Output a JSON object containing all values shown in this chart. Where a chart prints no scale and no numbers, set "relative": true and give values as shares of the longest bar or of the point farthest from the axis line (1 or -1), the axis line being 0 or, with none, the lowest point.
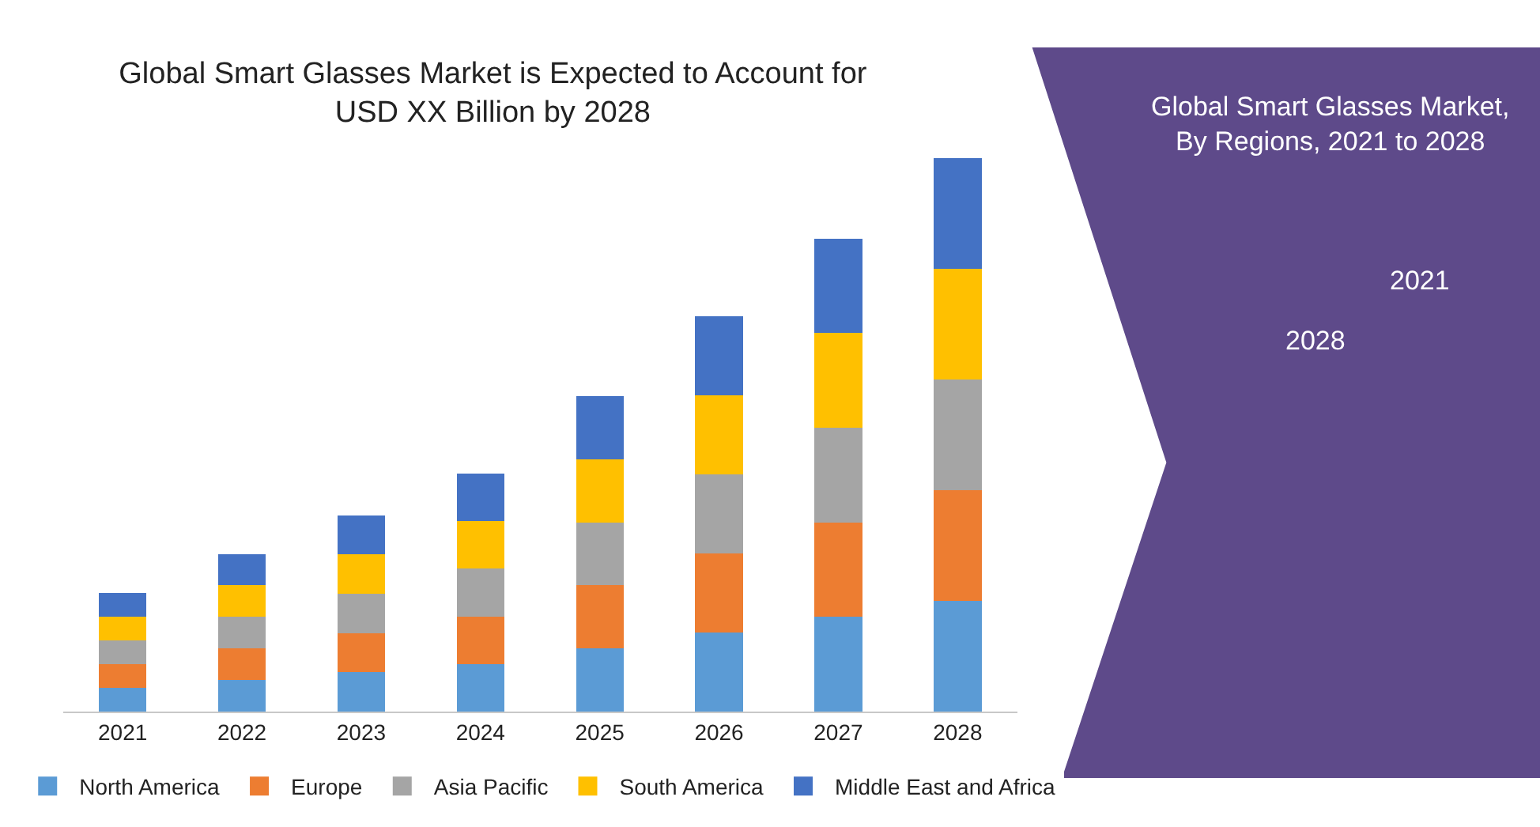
{
  "chart_data": {
    "type": "bar",
    "title": "Global Smart Glasses Market is Expected to Account for\nUSD XX Billion by 2028",
    "stacked": true,
    "relative": true,
    "legend": "bottom",
    "categories": [
      "2021",
      "2022",
      "2023",
      "2024",
      "2025",
      "2026",
      "2027",
      "2028"
    ],
    "series": [
      {
        "name": "North America",
        "color": "#5b9bd5",
        "values": [
          0.043,
          0.057,
          0.071,
          0.086,
          0.114,
          0.143,
          0.171,
          0.2
        ]
      },
      {
        "name": "Europe",
        "color": "#ed7d31",
        "values": [
          0.043,
          0.057,
          0.071,
          0.086,
          0.114,
          0.143,
          0.171,
          0.2
        ]
      },
      {
        "name": "Asia Pacific",
        "color": "#a5a5a5",
        "values": [
          0.043,
          0.057,
          0.071,
          0.086,
          0.114,
          0.143,
          0.171,
          0.2
        ]
      },
      {
        "name": "South America",
        "color": "#ffc000",
        "values": [
          0.043,
          0.057,
          0.071,
          0.086,
          0.114,
          0.143,
          0.171,
          0.2
        ]
      },
      {
        "name": "Middle East and Africa",
        "color": "#4472c4",
        "values": [
          0.043,
          0.057,
          0.071,
          0.086,
          0.114,
          0.143,
          0.171,
          0.2
        ]
      }
    ],
    "annotations": [
      "Global Smart Glasses Market,\nBy Regions, 2021 to 2028",
      "2021",
      "2028"
    ]
  }
}
